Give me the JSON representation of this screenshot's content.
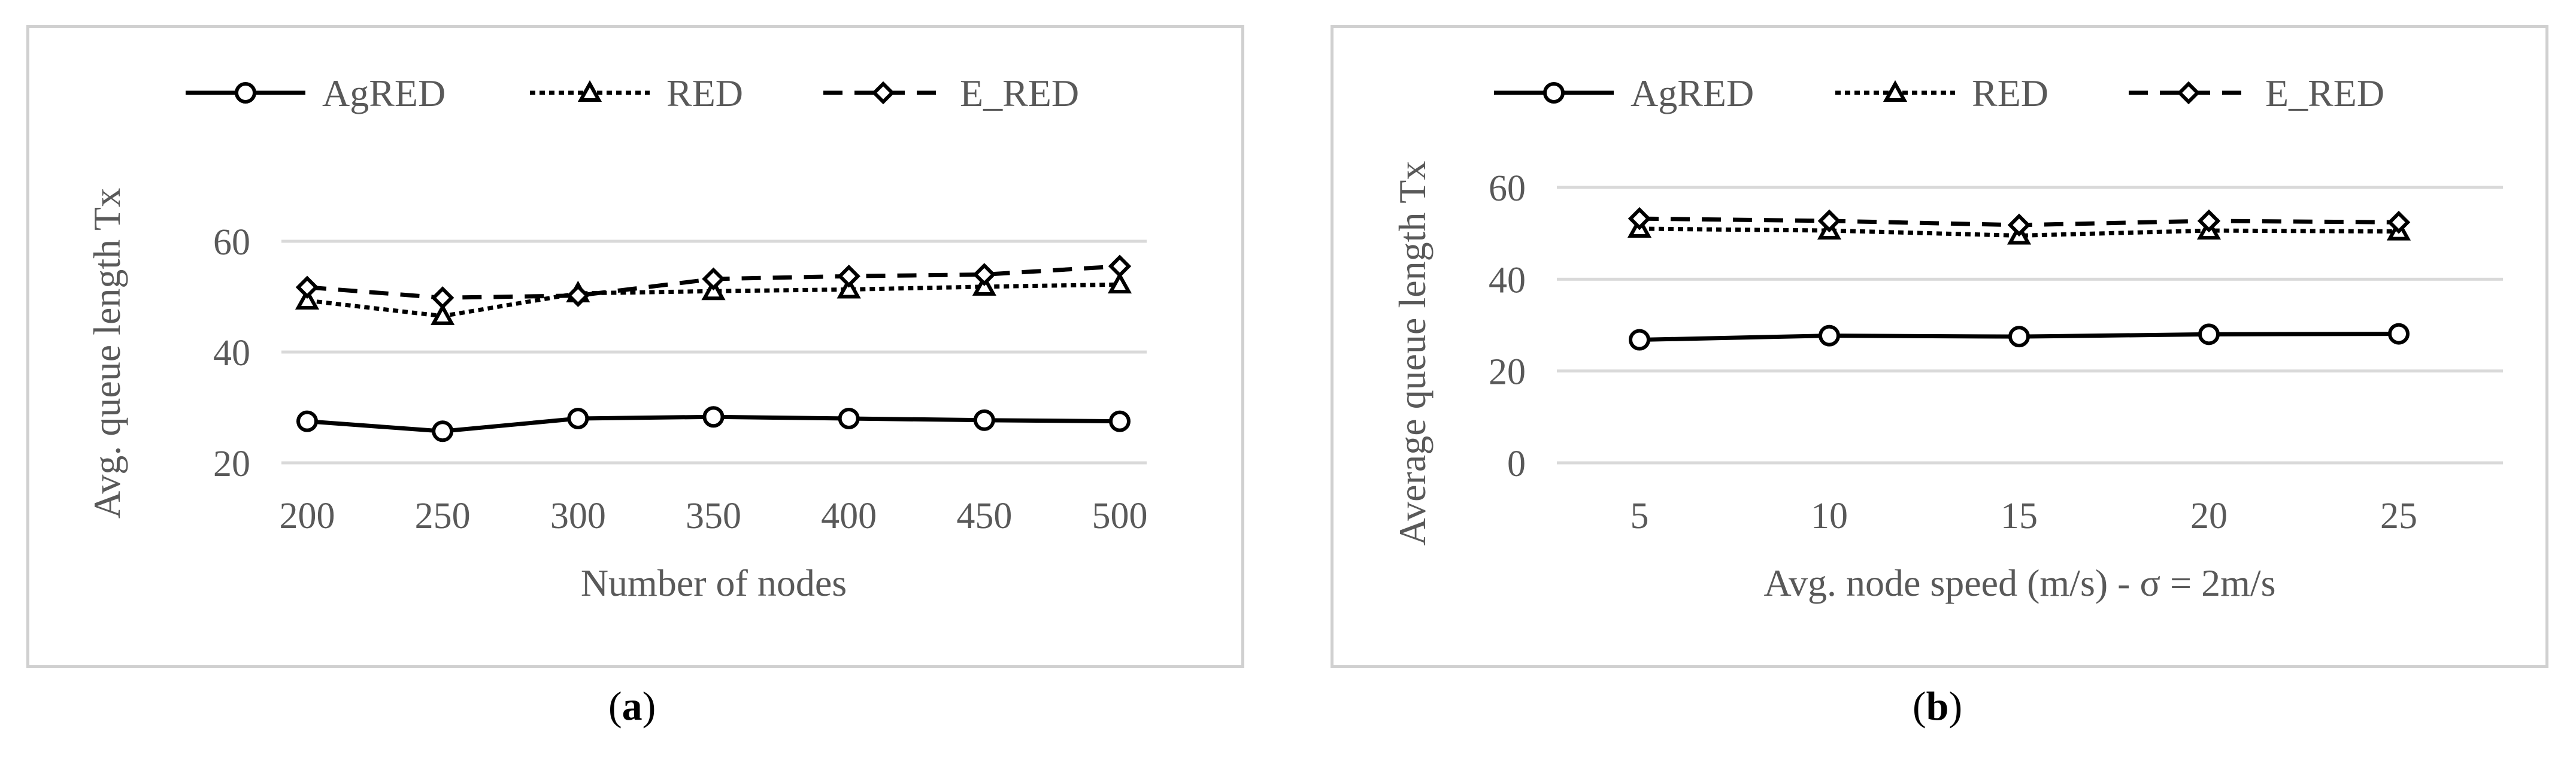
{
  "chart_data": [
    {
      "type": "line",
      "panel": "(a)",
      "xlabel": "Number of nodes",
      "ylabel": "Avg. queue length Tx",
      "categories": [
        "200",
        "250",
        "300",
        "350",
        "400",
        "450",
        "500"
      ],
      "yticks": [
        20,
        40,
        60
      ],
      "ylim": [
        20,
        60
      ],
      "grid": true,
      "legend_position": "top",
      "series": [
        {
          "name": "AgRED",
          "values": [
            27.5,
            25.7,
            28.0,
            28.3,
            28.0,
            27.7,
            27.5
          ],
          "marker": "circle",
          "style": "solid"
        },
        {
          "name": "RED",
          "values": [
            49.3,
            46.5,
            50.6,
            51.0,
            51.3,
            51.8,
            52.2
          ],
          "marker": "triangle",
          "style": "dotted"
        },
        {
          "name": "E_RED",
          "values": [
            51.7,
            49.8,
            50.2,
            53.2,
            53.7,
            54.0,
            55.5
          ],
          "marker": "diamond",
          "style": "dashed"
        }
      ]
    },
    {
      "type": "line",
      "panel": "(b)",
      "xlabel": "Avg. node speed (m/s) - σ = 2m/s",
      "ylabel": "Average queue length Tx",
      "categories": [
        "5",
        "10",
        "15",
        "20",
        "25"
      ],
      "yticks": [
        0,
        20,
        40,
        60
      ],
      "ylim": [
        0,
        60
      ],
      "grid": true,
      "legend_position": "top",
      "series": [
        {
          "name": "AgRED",
          "values": [
            26.8,
            27.7,
            27.5,
            28.0,
            28.1
          ],
          "marker": "circle",
          "style": "solid"
        },
        {
          "name": "RED",
          "values": [
            51.0,
            50.6,
            49.5,
            50.6,
            50.4
          ],
          "marker": "triangle",
          "style": "dotted"
        },
        {
          "name": "E_RED",
          "values": [
            53.2,
            52.7,
            51.8,
            52.7,
            52.4
          ],
          "marker": "diamond",
          "style": "dashed"
        }
      ]
    }
  ],
  "captions": {
    "a": "a",
    "b": "b"
  }
}
